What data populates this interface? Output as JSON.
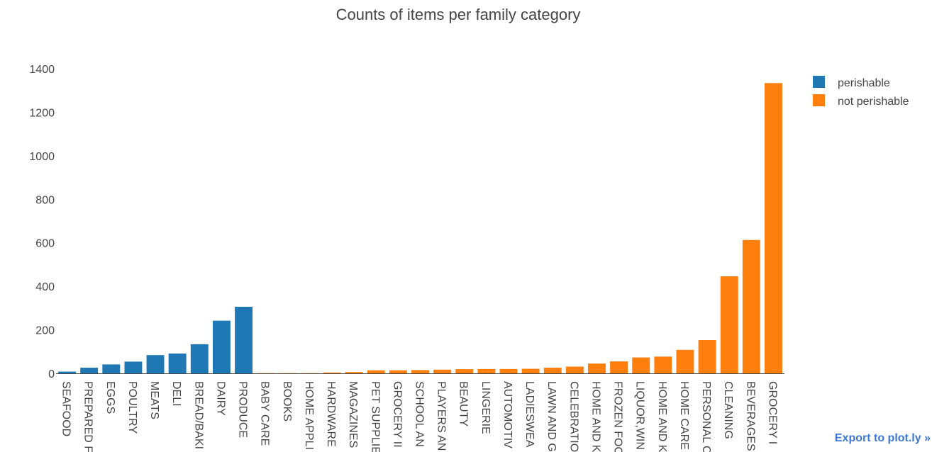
{
  "export_link": {
    "label": "Export to plot.ly »"
  },
  "colors": {
    "perishable": "#1f77b4",
    "not_perishable": "#ff7f0e"
  },
  "chart_data": {
    "type": "bar",
    "title": "Counts of items per family category",
    "xlabel": "",
    "ylabel": "",
    "ylim": [
      0,
      1440
    ],
    "yticks": [
      0,
      200,
      400,
      600,
      800,
      1000,
      1200,
      1400
    ],
    "legend_position": "top-right",
    "grid": false,
    "categories": [
      "SEAFOOD",
      "PREPARED FOODS",
      "EGGS",
      "POULTRY",
      "MEATS",
      "DELI",
      "BREAD/BAKERY",
      "DAIRY",
      "PRODUCE",
      "BABY CARE",
      "BOOKS",
      "HOME APPLIANCES",
      "HARDWARE",
      "MAGAZINES",
      "PET SUPPLIES",
      "GROCERY II",
      "SCHOOL AND OFFICE SUPPLIES",
      "PLAYERS AND ELECTRONICS",
      "BEAUTY",
      "LINGERIE",
      "AUTOMOTIVE",
      "LADIESWEAR",
      "LAWN AND GARDEN",
      "CELEBRATION",
      "HOME AND KITCHEN I",
      "FROZEN FOODS",
      "LIQUOR,WINE,BEER",
      "HOME AND KITCHEN II",
      "HOME CARE",
      "PERSONAL CARE",
      "CLEANING",
      "BEVERAGES",
      "GROCERY I"
    ],
    "tick_labels": [
      "SEAFOOD",
      "PREPARED F",
      "EGGS",
      "POULTRY",
      "MEATS",
      "DELI",
      "BREAD/BAKI",
      "DAIRY",
      "PRODUCE",
      "BABY CARE",
      "BOOKS",
      "HOME APPLI",
      "HARDWARE",
      "MAGAZINES",
      "PET SUPPLIE",
      "GROCERY II",
      "SCHOOL AN",
      "PLAYERS AN",
      "BEAUTY",
      "LINGERIE",
      "AUTOMOTIV",
      "LADIESWEA",
      "LAWN AND G",
      "CELEBRATIO",
      "HOME AND K",
      "FROZEN FOO",
      "LIQUOR,WIN",
      "HOME AND K",
      "HOME CARE",
      "PERSONAL C",
      "CLEANING",
      "BEVERAGES",
      "GROCERY I"
    ],
    "series": [
      {
        "name": "perishable",
        "color": "#1f77b4",
        "values": [
          8,
          26,
          41,
          54,
          84,
          91,
          134,
          242,
          306,
          null,
          null,
          null,
          null,
          null,
          null,
          null,
          null,
          null,
          null,
          null,
          null,
          null,
          null,
          null,
          null,
          null,
          null,
          null,
          null,
          null,
          null,
          null,
          null
        ]
      },
      {
        "name": "not perishable",
        "color": "#ff7f0e",
        "values": [
          null,
          null,
          null,
          null,
          null,
          null,
          null,
          null,
          null,
          1,
          1,
          1,
          4,
          6,
          14,
          14,
          15,
          17,
          19,
          20,
          20,
          21,
          26,
          31,
          45,
          55,
          73,
          77,
          108,
          153,
          446,
          613,
          1334
        ]
      }
    ]
  }
}
